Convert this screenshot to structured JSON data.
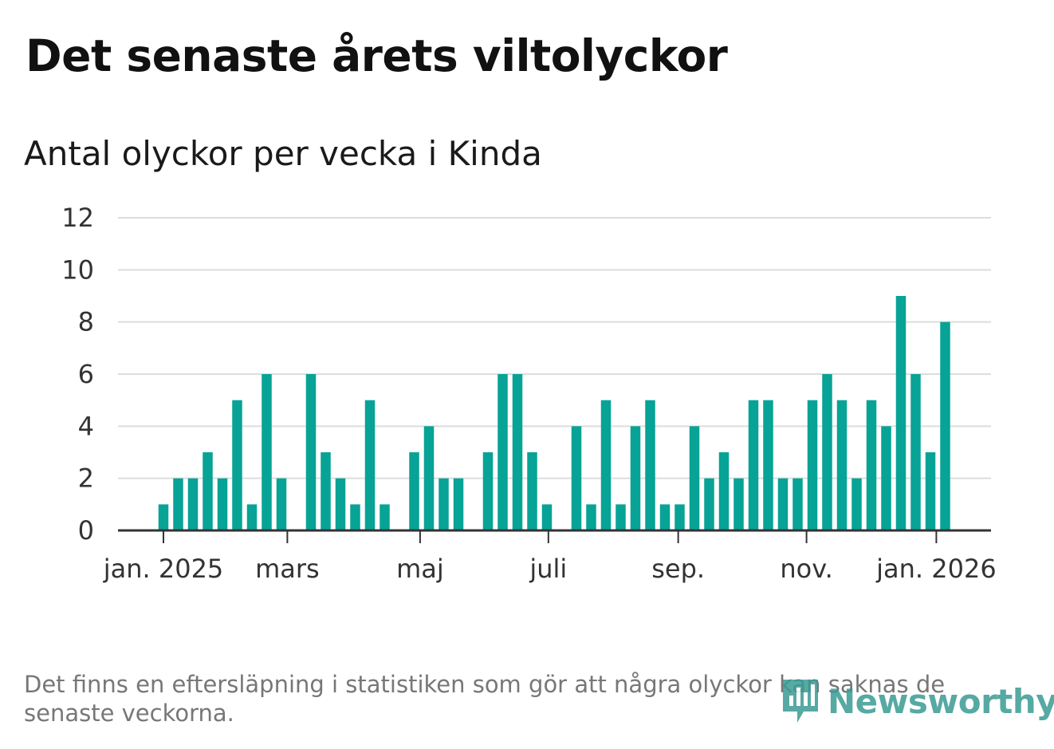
{
  "title": "Det senaste årets viltolyckor",
  "subtitle": "Antal olyckor per vecka i Kinda",
  "footnote": "Det finns en eftersläpning i statistiken som gör att några olyckor kan saknas de senaste veckorna.",
  "logo_text": "Newsworthy",
  "colors": {
    "bar": "#07a396",
    "grid": "#dddddd",
    "axis": "#333333",
    "logo": "#3a9b93"
  },
  "chart_data": {
    "type": "bar",
    "title": "Det senaste årets viltolyckor",
    "subtitle": "Antal olyckor per vecka i Kinda",
    "xlabel": "",
    "ylabel": "",
    "ylim": [
      0,
      12
    ],
    "yticks": [
      0,
      2,
      4,
      6,
      8,
      10,
      12
    ],
    "xticks": [
      {
        "label": "jan. 2025",
        "week_index": 0
      },
      {
        "label": "mars",
        "week_index": 8.4
      },
      {
        "label": "maj",
        "week_index": 17.4
      },
      {
        "label": "juli",
        "week_index": 26.1
      },
      {
        "label": "sep.",
        "week_index": 34.9
      },
      {
        "label": "nov.",
        "week_index": 43.6
      },
      {
        "label": "jan. 2026",
        "week_index": 52.4
      }
    ],
    "values": [
      1,
      2,
      2,
      3,
      2,
      5,
      1,
      6,
      2,
      0,
      6,
      3,
      2,
      1,
      5,
      1,
      0,
      3,
      4,
      2,
      2,
      0,
      3,
      6,
      6,
      3,
      1,
      0,
      4,
      1,
      5,
      1,
      4,
      5,
      1,
      1,
      4,
      2,
      3,
      2,
      5,
      5,
      2,
      2,
      5,
      6,
      5,
      2,
      5,
      4,
      9,
      6,
      3,
      8
    ],
    "grid": true,
    "legend": "none"
  }
}
